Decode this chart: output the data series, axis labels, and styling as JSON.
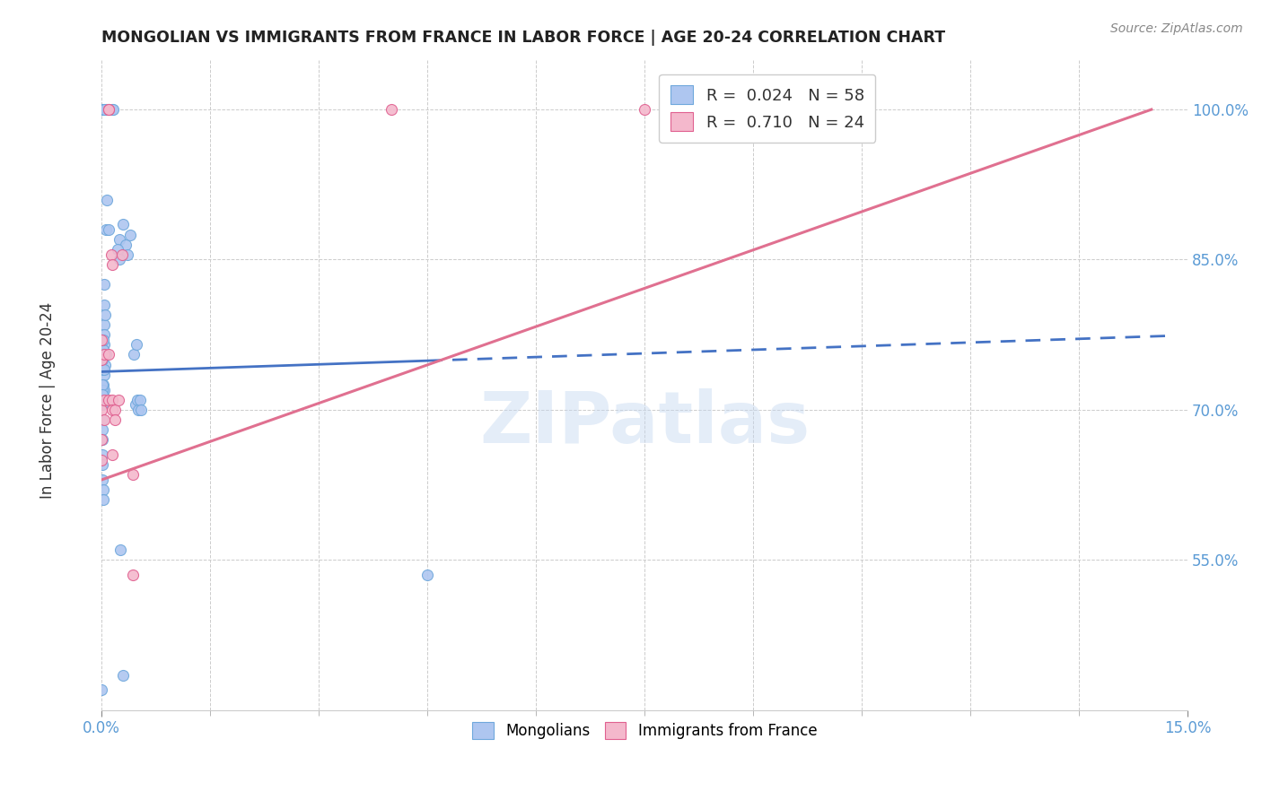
{
  "title": "MONGOLIAN VS IMMIGRANTS FROM FRANCE IN LABOR FORCE | AGE 20-24 CORRELATION CHART",
  "source": "Source: ZipAtlas.com",
  "ylabel": "In Labor Force | Age 20-24",
  "xlim": [
    0.0,
    15.0
  ],
  "ylim": [
    40.0,
    105.0
  ],
  "ytick_vals": [
    55.0,
    70.0,
    85.0,
    100.0
  ],
  "mongolian_scatter": [
    [
      0.1,
      100.0
    ],
    [
      0.14,
      100.0
    ],
    [
      0.16,
      100.0
    ],
    [
      0.07,
      91.0
    ],
    [
      0.0,
      42.0
    ],
    [
      0.06,
      88.0
    ],
    [
      0.09,
      88.0
    ],
    [
      0.25,
      87.0
    ],
    [
      0.3,
      88.5
    ],
    [
      0.33,
      86.5
    ],
    [
      0.36,
      85.5
    ],
    [
      0.39,
      87.5
    ],
    [
      0.22,
      86.0
    ],
    [
      0.25,
      85.0
    ],
    [
      0.44,
      75.5
    ],
    [
      0.47,
      70.5
    ],
    [
      0.48,
      76.5
    ],
    [
      0.49,
      71.0
    ],
    [
      0.5,
      70.0
    ],
    [
      0.53,
      71.0
    ],
    [
      0.54,
      70.0
    ],
    [
      0.04,
      80.5
    ],
    [
      0.04,
      82.5
    ],
    [
      0.04,
      78.5
    ],
    [
      0.04,
      76.5
    ],
    [
      0.05,
      74.5
    ],
    [
      0.06,
      75.5
    ],
    [
      0.05,
      79.5
    ],
    [
      0.03,
      77.5
    ],
    [
      0.03,
      73.5
    ],
    [
      0.025,
      75.5
    ],
    [
      0.025,
      76.0
    ],
    [
      0.025,
      72.5
    ],
    [
      0.02,
      71.0
    ],
    [
      0.03,
      72.0
    ],
    [
      0.015,
      75.0
    ],
    [
      0.015,
      72.0
    ],
    [
      0.01,
      74.0
    ],
    [
      0.01,
      72.5
    ],
    [
      0.01,
      71.5
    ],
    [
      0.01,
      70.5
    ],
    [
      0.01,
      69.0
    ],
    [
      0.01,
      68.0
    ],
    [
      0.01,
      67.0
    ],
    [
      0.01,
      65.5
    ],
    [
      0.01,
      64.5
    ],
    [
      0.01,
      63.0
    ],
    [
      0.02,
      62.0
    ],
    [
      0.02,
      61.0
    ],
    [
      0.26,
      56.0
    ],
    [
      0.3,
      43.5
    ],
    [
      4.5,
      53.5
    ],
    [
      0.01,
      100.0
    ],
    [
      0.0,
      100.0
    ],
    [
      0.06,
      100.0
    ],
    [
      0.07,
      100.0
    ],
    [
      0.03,
      100.0
    ],
    [
      0.02,
      77.0
    ],
    [
      0.03,
      74.0
    ]
  ],
  "france_scatter": [
    [
      0.0,
      77.0
    ],
    [
      0.0,
      75.0
    ],
    [
      0.0,
      70.0
    ],
    [
      0.0,
      67.0
    ],
    [
      0.0,
      65.0
    ],
    [
      0.04,
      75.5
    ],
    [
      0.04,
      71.0
    ],
    [
      0.04,
      69.0
    ],
    [
      0.09,
      100.0
    ],
    [
      0.1,
      100.0
    ],
    [
      0.09,
      75.5
    ],
    [
      0.1,
      71.0
    ],
    [
      0.13,
      85.5
    ],
    [
      0.14,
      84.5
    ],
    [
      0.14,
      71.0
    ],
    [
      0.14,
      70.0
    ],
    [
      0.14,
      65.5
    ],
    [
      0.18,
      70.0
    ],
    [
      0.18,
      69.0
    ],
    [
      0.23,
      71.0
    ],
    [
      0.28,
      85.5
    ],
    [
      4.0,
      100.0
    ],
    [
      7.5,
      100.0
    ],
    [
      0.43,
      63.5
    ],
    [
      0.43,
      53.5
    ]
  ],
  "blue_line_solid": {
    "x": [
      0.0,
      4.5
    ],
    "y": [
      73.8,
      74.9
    ]
  },
  "blue_line_dashed": {
    "x": [
      4.5,
      14.8
    ],
    "y": [
      74.9,
      77.4
    ]
  },
  "pink_line": {
    "x": [
      0.0,
      14.5
    ],
    "y": [
      63.0,
      100.0
    ]
  },
  "watermark_text": "ZIPatlas",
  "background_color": "#ffffff",
  "scatter_size": 75,
  "blue_fill": "#aec6f0",
  "blue_edge": "#6fa8dc",
  "pink_fill": "#f4b8cc",
  "pink_edge": "#e06090",
  "blue_line_color": "#4472c4",
  "pink_line_color": "#e07090",
  "grid_color": "#cccccc",
  "tick_color": "#5b9bd5",
  "title_color": "#222222",
  "label_color": "#333333",
  "source_color": "#888888"
}
